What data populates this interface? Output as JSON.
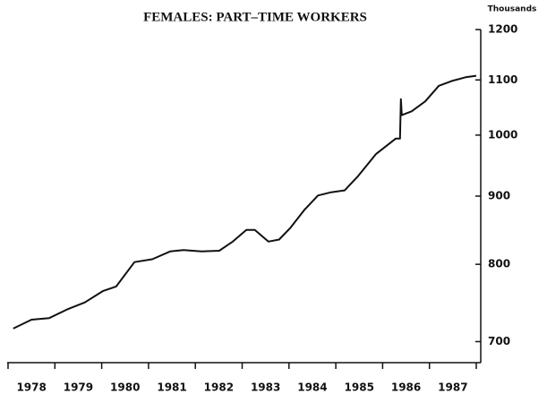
{
  "chart_data": {
    "type": "line",
    "title": "FEMALES: PART–TIME WORKERS",
    "y_axis_label": "Thousands",
    "log": true,
    "color": "#111111",
    "x": [
      1978.11,
      1978.5,
      1978.88,
      1979.26,
      1979.64,
      1980.03,
      1980.31,
      1980.7,
      1981.08,
      1981.46,
      1981.75,
      1982.13,
      1982.51,
      1982.8,
      1983.09,
      1983.27,
      1983.56,
      1983.79,
      1984.03,
      1984.33,
      1984.62,
      1984.9,
      1985.19,
      1985.48,
      1985.86,
      1986.28,
      1986.37,
      1986.39,
      1986.41,
      1986.62,
      1986.91,
      1987.2,
      1987.48,
      1987.77,
      1988.0
    ],
    "values": [
      716,
      727,
      729,
      740,
      749,
      764,
      770,
      803,
      807,
      818,
      820,
      818,
      819,
      832,
      849,
      849,
      832,
      835,
      852,
      879,
      901,
      906,
      909,
      932,
      968,
      994,
      994,
      1064,
      1035,
      1042,
      1060,
      1089,
      1098,
      1105,
      1108
    ],
    "xlim": [
      1978,
      1988
    ],
    "xticks": [
      {
        "value": 1978,
        "label": "1978"
      },
      {
        "value": 1979,
        "label": "1979"
      },
      {
        "value": 1980,
        "label": "1980"
      },
      {
        "value": 1981,
        "label": "1981"
      },
      {
        "value": 1982,
        "label": "1982"
      },
      {
        "value": 1983,
        "label": "1983"
      },
      {
        "value": 1984,
        "label": "1984"
      },
      {
        "value": 1985,
        "label": "1985"
      },
      {
        "value": 1986,
        "label": "1986"
      },
      {
        "value": 1987,
        "label": "1987"
      }
    ],
    "ylim": [
      675,
      1200
    ],
    "yticks": [
      700,
      800,
      900,
      1000,
      1100,
      1200
    ]
  }
}
